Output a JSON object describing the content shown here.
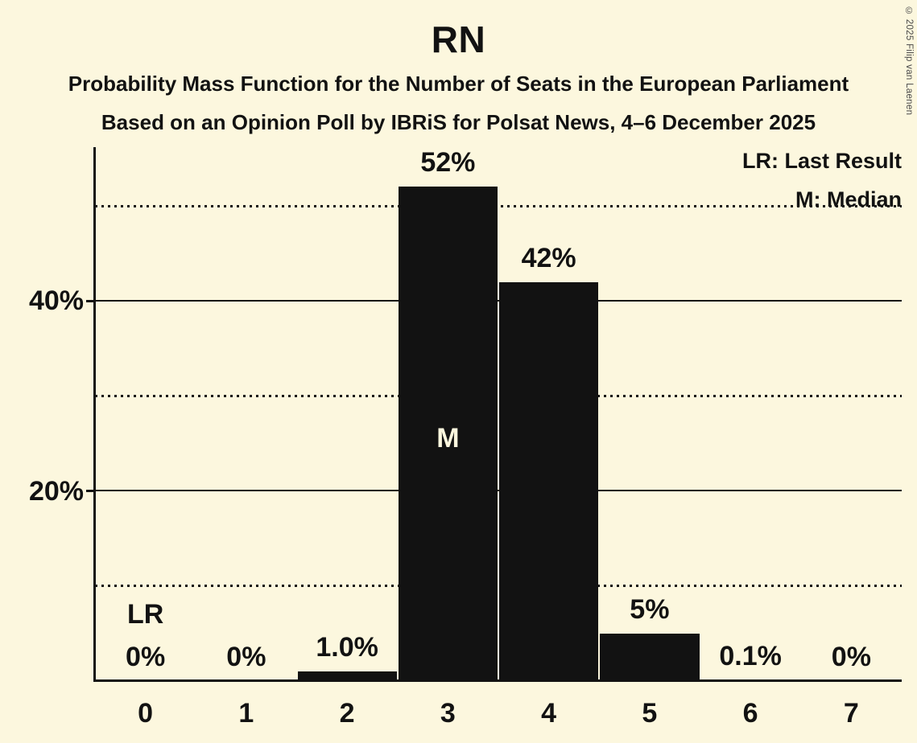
{
  "title": "RN",
  "subtitles": [
    "Probability Mass Function for the Number of Seats in the European Parliament",
    "Based on an Opinion Poll by IBRiS for Polsat News, 4–6 December 2025"
  ],
  "legend": {
    "items": [
      "LR: Last Result",
      "M: Median"
    ]
  },
  "copyright": "© 2025 Filip van Laenen",
  "colors": {
    "background": "#FCF7DE",
    "bar": "#121212",
    "text": "#121212",
    "muted_text": "#4a4a4a"
  },
  "chart_data": {
    "type": "bar",
    "title": "RN",
    "categories": [
      "0",
      "1",
      "2",
      "3",
      "4",
      "5",
      "6",
      "7"
    ],
    "values": [
      0,
      0,
      1.0,
      52,
      42,
      5,
      0.1,
      0
    ],
    "value_labels": [
      "0%",
      "0%",
      "1.0%",
      "52%",
      "42%",
      "5%",
      "0.1%",
      "0%"
    ],
    "xlabel": "",
    "ylabel": "",
    "ylim": [
      0,
      56
    ],
    "ytick_labels": [
      {
        "value": 20,
        "label": "20%"
      },
      {
        "value": 40,
        "label": "40%"
      }
    ],
    "gridlines": [
      {
        "value": 10,
        "style": "dotted"
      },
      {
        "value": 20,
        "style": "solid"
      },
      {
        "value": 30,
        "style": "dotted"
      },
      {
        "value": 40,
        "style": "solid"
      },
      {
        "value": 50,
        "style": "dotted"
      }
    ],
    "grid": "horizontal-only",
    "legend_position": "top-right",
    "annotations": [
      {
        "text": "LR",
        "meaning": "Last Result",
        "category_index": 0,
        "placement": "above-label"
      },
      {
        "text": "M",
        "meaning": "Median",
        "category_index": 3,
        "placement": "inside-bar"
      }
    ]
  }
}
